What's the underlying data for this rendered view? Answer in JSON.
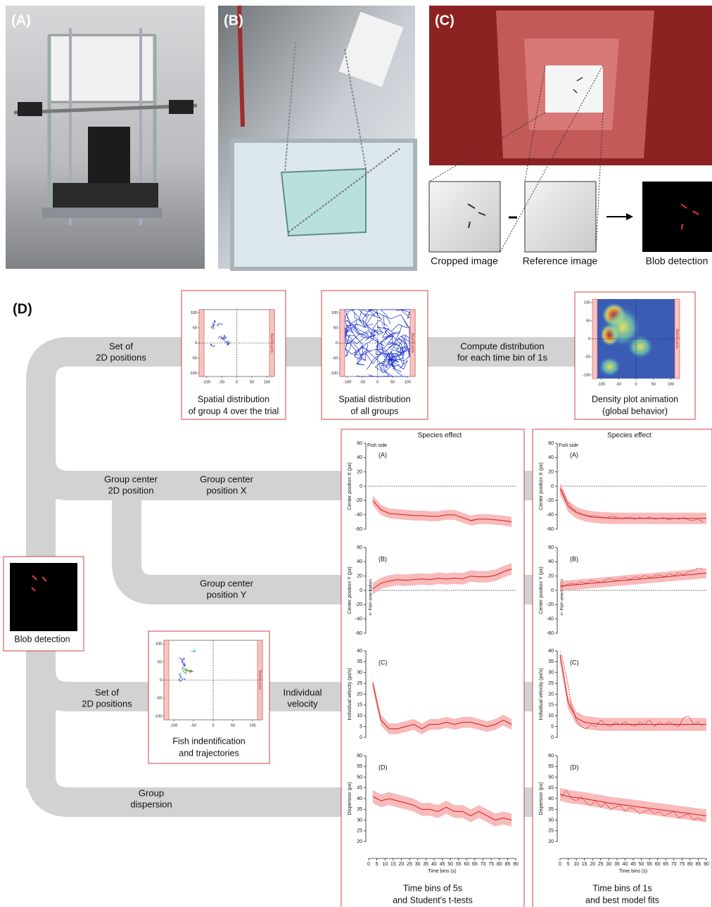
{
  "photos": {
    "panel_a": "(A)",
    "panel_b": "(B)",
    "panel_c": "(C)",
    "cropped": "Cropped image",
    "reference": "Reference image",
    "blob": "Blob detection"
  },
  "pipeline": {
    "label": "(D)",
    "blob_box": "Blob detection",
    "labels": [
      [
        "Set of",
        "2D positions"
      ],
      [
        "Compute distribution",
        "for each time bin of 1s"
      ],
      [
        "Group center",
        "2D position"
      ],
      [
        "Group center",
        "position X"
      ],
      [
        "Group center",
        "position Y"
      ],
      [
        "Set of",
        "2D positions"
      ],
      [
        "Individual",
        "velocity"
      ],
      [
        "Group",
        "dispersion"
      ]
    ]
  },
  "maps": [
    {
      "caption": [
        "Spatial distribution",
        "of group 4 over the trial"
      ],
      "xlim": [
        -125,
        125
      ],
      "ylim": [
        -110,
        110
      ],
      "xticks": [
        -100,
        -50,
        0,
        50,
        100
      ],
      "yticks": [
        100,
        50,
        0,
        -50,
        -100
      ],
      "side_label": "Bluefin jacks"
    },
    {
      "caption": [
        "Spatial distribution",
        "of all groups"
      ],
      "xlim": [
        -125,
        125
      ],
      "ylim": [
        -110,
        110
      ],
      "xticks": [
        -100,
        -50,
        0,
        50,
        100
      ],
      "yticks": [
        100,
        50,
        0,
        -50,
        -100
      ],
      "side_label": "Bluefin jacks"
    },
    {
      "caption": [
        "Density plot animation",
        "(global behavior)"
      ],
      "xlim": [
        -125,
        125
      ],
      "ylim": [
        -110,
        110
      ],
      "xticks": [
        -100,
        -50,
        0,
        50,
        100
      ],
      "yticks": [
        100,
        50,
        0,
        -50,
        -100
      ],
      "side_label": "Bluefin jacks"
    },
    {
      "caption": [
        "Fish indentification",
        "and trajectories"
      ],
      "xlim": [
        -125,
        125
      ],
      "ylim": [
        -110,
        110
      ],
      "xticks": [
        -100,
        -50,
        0,
        50,
        100
      ],
      "yticks": [
        100,
        50,
        0,
        -50,
        -100
      ],
      "side_label": "Bluefin jacks"
    }
  ],
  "columns": [
    {
      "title": "Species effect",
      "caption": [
        "Time bins of 5s",
        "and Student's t-tests"
      ]
    },
    {
      "title": "Species effect",
      "caption": [
        "Time bins of 1s",
        "and best model fits"
      ]
    }
  ],
  "chart_data": [
    {
      "type": "line",
      "label": "(A)",
      "ylabel": "Center position X (px)",
      "annotation": "Fish side",
      "hline": 0,
      "xlim": [
        0,
        90
      ],
      "ylim": [
        -60,
        60
      ],
      "yticks": [
        60,
        40,
        20,
        0,
        -20,
        -40,
        -60
      ],
      "x": [
        2.5,
        7.5,
        12.5,
        17.5,
        22.5,
        27.5,
        32.5,
        37.5,
        42.5,
        47.5,
        52.5,
        57.5,
        62.5,
        67.5,
        72.5,
        77.5,
        82.5,
        87.5
      ],
      "values": [
        -20,
        -33,
        -38,
        -39,
        -40,
        -41,
        -41,
        -42,
        -42,
        -40,
        -40,
        -44,
        -48,
        -46,
        -46,
        -47,
        -48,
        -50
      ],
      "ci": 7
    },
    {
      "type": "line",
      "label": "(B)",
      "ylabel": "Center position Y (px)",
      "annotation": "⇐ Fish orientation",
      "hline": 0,
      "xlim": [
        0,
        90
      ],
      "ylim": [
        -60,
        60
      ],
      "yticks": [
        60,
        40,
        20,
        0,
        -20,
        -40,
        -60
      ],
      "x": [
        2.5,
        7.5,
        12.5,
        17.5,
        22.5,
        27.5,
        32.5,
        37.5,
        42.5,
        47.5,
        52.5,
        57.5,
        62.5,
        67.5,
        72.5,
        77.5,
        82.5,
        87.5
      ],
      "values": [
        2,
        10,
        13,
        15,
        14,
        15,
        16,
        15,
        17,
        16,
        17,
        16,
        20,
        19,
        19,
        21,
        26,
        30
      ],
      "ci": 8
    },
    {
      "type": "line",
      "label": "(C)",
      "ylabel": "Individual velocity (px/s)",
      "xlim": [
        0,
        90
      ],
      "ylim": [
        0,
        40
      ],
      "yticks": [
        40,
        35,
        30,
        25,
        20,
        15,
        10,
        5,
        0
      ],
      "x": [
        2.5,
        7.5,
        12.5,
        17.5,
        22.5,
        27.5,
        32.5,
        37.5,
        42.5,
        47.5,
        52.5,
        57.5,
        62.5,
        67.5,
        72.5,
        77.5,
        82.5,
        87.5
      ],
      "values": [
        25,
        8,
        4,
        4,
        5,
        6,
        4,
        6,
        6,
        7,
        6,
        7,
        7,
        6,
        5,
        6,
        8,
        6
      ],
      "ci": 2.5
    },
    {
      "type": "line",
      "label": "(D)",
      "ylabel": "Dispersion (px)",
      "xlabel": "Time bins (s)",
      "xlim": [
        0,
        90
      ],
      "xticks": [
        0,
        5,
        10,
        15,
        20,
        25,
        30,
        35,
        40,
        45,
        50,
        55,
        60,
        65,
        70,
        75,
        80,
        85,
        90
      ],
      "ylim": [
        20,
        60
      ],
      "yticks": [
        60,
        55,
        50,
        45,
        40,
        35,
        30,
        25,
        20
      ],
      "x": [
        2.5,
        7.5,
        12.5,
        17.5,
        22.5,
        27.5,
        32.5,
        37.5,
        42.5,
        47.5,
        52.5,
        57.5,
        62.5,
        67.5,
        72.5,
        77.5,
        82.5,
        87.5
      ],
      "values": [
        41,
        39,
        40,
        39,
        38,
        37,
        35,
        35,
        34,
        36,
        34,
        34,
        32,
        34,
        32,
        30,
        31,
        30
      ],
      "ci": 3
    },
    {
      "type": "line",
      "label": "(A)",
      "ylabel": "Center position X (px)",
      "annotation": "Fish side",
      "hline": 0,
      "xlim": [
        0,
        90
      ],
      "ylim": [
        -60,
        60
      ],
      "yticks": [
        60,
        40,
        20,
        0,
        -20,
        -40,
        -60
      ],
      "x": [
        1,
        4,
        7,
        10,
        13,
        16,
        19,
        22,
        25,
        28,
        31,
        34,
        37,
        40,
        43,
        46,
        49,
        52,
        55,
        58,
        61,
        64,
        67,
        70,
        73,
        76,
        79,
        82,
        85,
        88
      ],
      "values": [
        -5,
        -20,
        -30,
        -35,
        -38,
        -40,
        -42,
        -41,
        -43,
        -44,
        -42,
        -43,
        -45,
        -44,
        -43,
        -46,
        -44,
        -45,
        -43,
        -46,
        -45,
        -44,
        -47,
        -45,
        -46,
        -44,
        -47,
        -48,
        -46,
        -50
      ],
      "ci": 8,
      "fit": {
        "x": [
          0,
          5,
          10,
          15,
          20,
          25,
          30,
          35,
          40,
          45,
          50,
          55,
          60,
          65,
          70,
          75,
          80,
          85,
          90
        ],
        "values": [
          -3,
          -28,
          -37,
          -41,
          -43,
          -44,
          -44.5,
          -45,
          -45,
          -45,
          -45,
          -45,
          -45,
          -45,
          -45,
          -45,
          -45,
          -45,
          -45
        ]
      }
    },
    {
      "type": "line",
      "label": "(B)",
      "ylabel": "Center position Y (px)",
      "annotation": "⇐ Fish orientation",
      "hline": 0,
      "xlim": [
        0,
        90
      ],
      "ylim": [
        -60,
        60
      ],
      "yticks": [
        60,
        40,
        20,
        0,
        -20,
        -40,
        -60
      ],
      "x": [
        1,
        4,
        7,
        10,
        13,
        16,
        19,
        22,
        25,
        28,
        31,
        34,
        37,
        40,
        43,
        46,
        49,
        52,
        55,
        58,
        61,
        64,
        67,
        70,
        73,
        76,
        79,
        82,
        85,
        88
      ],
      "values": [
        4,
        8,
        10,
        9,
        12,
        10,
        14,
        13,
        11,
        15,
        17,
        14,
        16,
        18,
        15,
        19,
        17,
        21,
        18,
        20,
        22,
        19,
        23,
        21,
        24,
        22,
        26,
        28,
        31,
        30
      ],
      "ci": 7,
      "fit": {
        "x": [
          0,
          5,
          10,
          15,
          20,
          25,
          30,
          35,
          40,
          45,
          50,
          55,
          60,
          65,
          70,
          75,
          80,
          85,
          90
        ],
        "values": [
          6,
          7,
          8,
          9,
          10,
          11,
          12,
          13,
          14,
          15,
          16,
          17,
          18,
          19,
          20,
          21,
          22,
          23,
          24
        ]
      }
    },
    {
      "type": "line",
      "label": "(C)",
      "ylabel": "Individual velocity (px/s)",
      "xlim": [
        0,
        90
      ],
      "ylim": [
        0,
        40
      ],
      "yticks": [
        40,
        35,
        30,
        25,
        20,
        15,
        10,
        5,
        0
      ],
      "x": [
        1,
        4,
        7,
        10,
        13,
        16,
        19,
        22,
        25,
        28,
        31,
        34,
        37,
        40,
        43,
        46,
        49,
        52,
        55,
        58,
        61,
        64,
        67,
        70,
        73,
        76,
        79,
        82,
        85,
        88
      ],
      "values": [
        38,
        28,
        15,
        8,
        5,
        4,
        6,
        5,
        8,
        6,
        5,
        7,
        6,
        7,
        6,
        5,
        7,
        6,
        8,
        5,
        7,
        6,
        7,
        6,
        5,
        9,
        10,
        6,
        7,
        5
      ],
      "ci": 3,
      "fit": {
        "x": [
          0,
          5,
          10,
          15,
          20,
          25,
          30,
          35,
          40,
          45,
          50,
          55,
          60,
          65,
          70,
          75,
          80,
          85,
          90
        ],
        "values": [
          38,
          16,
          9,
          7,
          6.5,
          6,
          6,
          6,
          6,
          6,
          6,
          6,
          6,
          6,
          6,
          6,
          6,
          6,
          6
        ]
      }
    },
    {
      "type": "line",
      "label": "(D)",
      "ylabel": "Dispersion (px)",
      "xlabel": "Time bins (s)",
      "xlim": [
        0,
        90
      ],
      "xticks": [
        0,
        5,
        10,
        15,
        20,
        25,
        30,
        35,
        40,
        45,
        50,
        55,
        60,
        65,
        70,
        75,
        80,
        85,
        90
      ],
      "ylim": [
        20,
        60
      ],
      "yticks": [
        60,
        55,
        50,
        45,
        40,
        35,
        30,
        25,
        20
      ],
      "x": [
        1,
        4,
        7,
        10,
        13,
        16,
        19,
        22,
        25,
        28,
        31,
        34,
        37,
        40,
        43,
        46,
        49,
        52,
        55,
        58,
        61,
        64,
        67,
        70,
        73,
        76,
        79,
        82,
        85,
        88
      ],
      "values": [
        41,
        44,
        40,
        39,
        41,
        38,
        37,
        39,
        36,
        38,
        35,
        36,
        37,
        34,
        36,
        35,
        33,
        34,
        35,
        33,
        34,
        32,
        33,
        34,
        31,
        32,
        33,
        30,
        31,
        30
      ],
      "ci": 3,
      "fit": {
        "x": [
          0,
          5,
          10,
          15,
          20,
          25,
          30,
          35,
          40,
          45,
          50,
          55,
          60,
          65,
          70,
          75,
          80,
          85,
          90
        ],
        "values": [
          42,
          41,
          40.5,
          40,
          39.3,
          38.7,
          38,
          37.5,
          37,
          36.5,
          36,
          35.5,
          35,
          34.5,
          34,
          33.5,
          33,
          32.5,
          32
        ]
      }
    }
  ]
}
